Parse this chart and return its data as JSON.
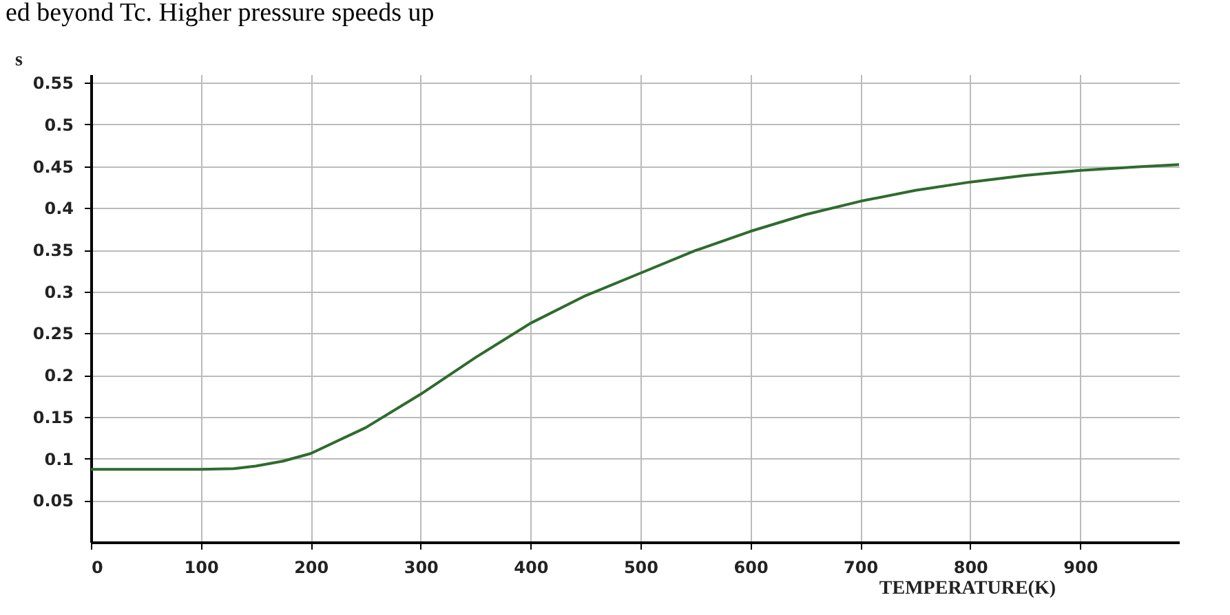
{
  "chart_data": {
    "type": "line",
    "annotations": [
      "ed beyond Tc. Higher pressure speeds up"
    ],
    "xlabel": "TEMPERATURE(K)",
    "ylabel": "s",
    "x": [
      0,
      100,
      130,
      150,
      175,
      200,
      250,
      300,
      350,
      400,
      450,
      500,
      550,
      600,
      650,
      700,
      750,
      800,
      850,
      900,
      950,
      990
    ],
    "series": [
      {
        "color": "#2e6b2e",
        "values": [
          0.087,
          0.087,
          0.088,
          0.091,
          0.097,
          0.106,
          0.137,
          0.177,
          0.221,
          0.262,
          0.295,
          0.322,
          0.349,
          0.372,
          0.392,
          0.408,
          0.421,
          0.431,
          0.439,
          0.445,
          0.449,
          0.452
        ]
      }
    ],
    "xlim": [
      0,
      990
    ],
    "xticks": [
      0,
      100,
      200,
      300,
      400,
      500,
      600,
      700,
      800,
      900
    ],
    "ylim": [
      0,
      0.56
    ],
    "yticks": [
      0.05,
      0.1,
      0.15,
      0.2,
      0.25,
      0.3,
      0.35,
      0.4,
      0.45,
      0.5,
      0.55
    ],
    "grid": true,
    "marker": "none",
    "line_style": "solid"
  }
}
